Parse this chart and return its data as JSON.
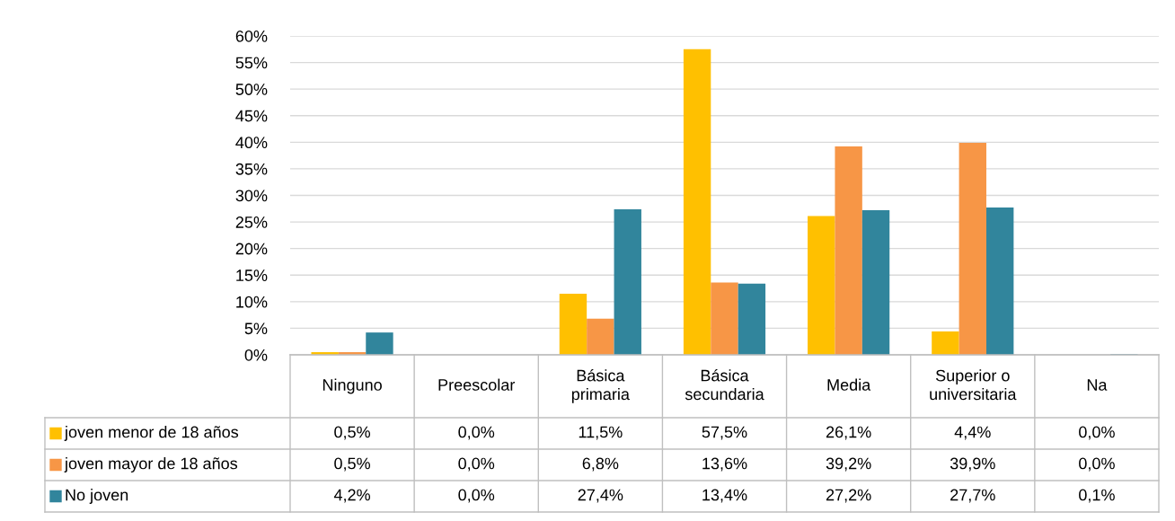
{
  "chart_data": {
    "type": "bar",
    "categories": [
      "Ninguno",
      "Preescolar",
      "Básica primaria",
      "Básica secundaria",
      "Media",
      "Superior o universitaria",
      "Na"
    ],
    "series": [
      {
        "name": "joven menor de 18 años",
        "color": "#ffc000",
        "values": [
          0.5,
          0.0,
          11.5,
          57.5,
          26.1,
          4.4,
          0.0
        ],
        "value_labels": [
          "0,5%",
          "0,0%",
          "11,5%",
          "57,5%",
          "26,1%",
          "4,4%",
          "0,0%"
        ]
      },
      {
        "name": "joven mayor de 18 años",
        "color": "#f79646",
        "values": [
          0.5,
          0.0,
          6.8,
          13.6,
          39.2,
          39.9,
          0.0
        ],
        "value_labels": [
          "0,5%",
          "0,0%",
          "6,8%",
          "13,6%",
          "39,2%",
          "39,9%",
          "0,0%"
        ]
      },
      {
        "name": "No joven",
        "color": "#31859c",
        "values": [
          4.2,
          0.0,
          27.4,
          13.4,
          27.2,
          27.7,
          0.1
        ],
        "value_labels": [
          "4,2%",
          "0,0%",
          "27,4%",
          "13,4%",
          "27,2%",
          "27,7%",
          "0,1%"
        ]
      }
    ],
    "ylim": [
      0,
      60
    ],
    "yticks": [
      {
        "value": 0,
        "label": "0%"
      },
      {
        "value": 5,
        "label": "5%"
      },
      {
        "value": 10,
        "label": "10%"
      },
      {
        "value": 15,
        "label": "15%"
      },
      {
        "value": 20,
        "label": "20%"
      },
      {
        "value": 25,
        "label": "25%"
      },
      {
        "value": 30,
        "label": "30%"
      },
      {
        "value": 35,
        "label": "35%"
      },
      {
        "value": 40,
        "label": "40%"
      },
      {
        "value": 45,
        "label": "45%"
      },
      {
        "value": 50,
        "label": "50%"
      },
      {
        "value": 55,
        "label": "55%"
      },
      {
        "value": 60,
        "label": "60%"
      }
    ],
    "grid": "y",
    "legend": "bottom"
  }
}
